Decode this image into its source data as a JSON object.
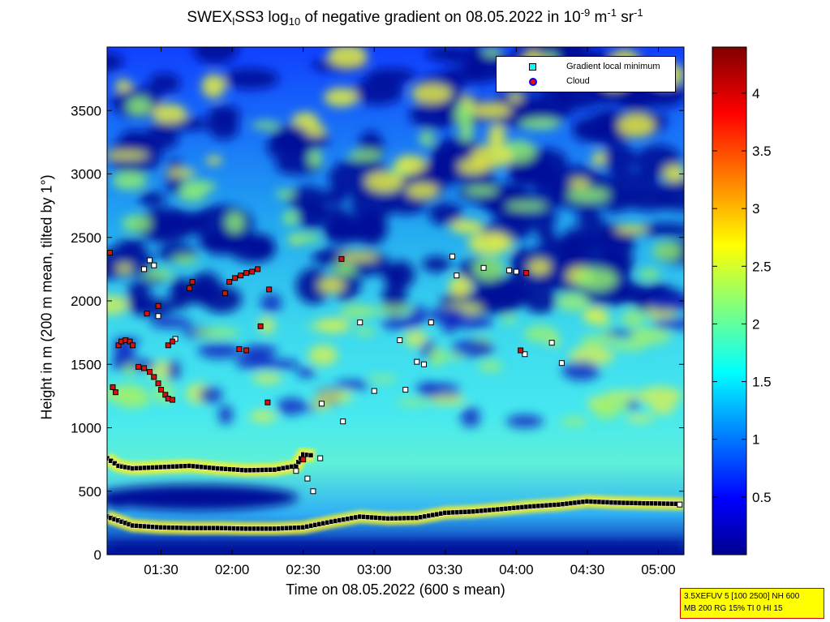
{
  "title": {
    "part1": "SWEX",
    "sub1": "l",
    "part2": "SS3 log",
    "sub2": "10",
    "part3": " of negative gradient on 08.05.2022 in 10",
    "sup1": "-9",
    "part4": " m",
    "sup2": "-1",
    "part5": " sr",
    "sup3": "-1"
  },
  "chart_data": {
    "type": "heatmap",
    "xlabel": "Time on 08.05.2022 (600 s mean)",
    "ylabel": "Height in m (200 m mean, tilted by 1°)",
    "x_ticks": [
      "01:30",
      "02:00",
      "02:30",
      "03:00",
      "03:30",
      "04:00",
      "04:30",
      "05:00"
    ],
    "x_tick_hours": [
      1.5,
      2.0,
      2.5,
      3.0,
      3.5,
      4.0,
      4.5,
      5.0
    ],
    "xlim_hours": [
      1.12,
      5.18
    ],
    "y_ticks": [
      0,
      500,
      1000,
      1500,
      2000,
      2500,
      3000,
      3500
    ],
    "ylim": [
      0,
      4000
    ],
    "colorbar": {
      "ticks": [
        "0.5",
        "1",
        "1.5",
        "2",
        "2.5",
        "3",
        "3.5",
        "4"
      ],
      "tick_values": [
        0.5,
        1,
        1.5,
        2,
        2.5,
        3,
        3.5,
        4
      ],
      "range": [
        0,
        4.4
      ],
      "colormap": "jet"
    },
    "legend": [
      {
        "label": "Gradient local minimum",
        "marker": "square",
        "color": "#00ffff"
      },
      {
        "label": "Cloud",
        "marker": "circle",
        "color": "#ff0000"
      }
    ],
    "layers": [
      {
        "name": "surface layer top",
        "hours": [
          1.12,
          1.3,
          1.5,
          1.7,
          1.9,
          2.1,
          2.3,
          2.5,
          2.7,
          2.9,
          3.1,
          3.3,
          3.5,
          3.7,
          3.9,
          4.1,
          4.3,
          4.5,
          4.7,
          4.9,
          5.18
        ],
        "heights": [
          300,
          230,
          215,
          210,
          210,
          205,
          205,
          215,
          260,
          300,
          285,
          290,
          330,
          340,
          360,
          380,
          395,
          420,
          410,
          405,
          400
        ]
      },
      {
        "name": "residual layer top",
        "hours": [
          1.12,
          1.2,
          1.3,
          1.5,
          1.7,
          1.9,
          2.1,
          2.3,
          2.45,
          2.5,
          2.58
        ],
        "heights": [
          760,
          700,
          680,
          690,
          700,
          680,
          665,
          670,
          700,
          790,
          780
        ]
      }
    ],
    "cloud_points": [
      {
        "t": 1.14,
        "h": 2380
      },
      {
        "t": 1.16,
        "h": 1320
      },
      {
        "t": 1.18,
        "h": 1280
      },
      {
        "t": 1.2,
        "h": 1650
      },
      {
        "t": 1.22,
        "h": 1680
      },
      {
        "t": 1.25,
        "h": 1690
      },
      {
        "t": 1.28,
        "h": 1680
      },
      {
        "t": 1.3,
        "h": 1650
      },
      {
        "t": 1.34,
        "h": 1480
      },
      {
        "t": 1.38,
        "h": 1470
      },
      {
        "t": 1.42,
        "h": 1440
      },
      {
        "t": 1.45,
        "h": 1400
      },
      {
        "t": 1.48,
        "h": 1350
      },
      {
        "t": 1.5,
        "h": 1300
      },
      {
        "t": 1.53,
        "h": 1260
      },
      {
        "t": 1.55,
        "h": 1230
      },
      {
        "t": 1.58,
        "h": 1220
      },
      {
        "t": 1.4,
        "h": 1900
      },
      {
        "t": 1.48,
        "h": 1960
      },
      {
        "t": 1.55,
        "h": 1650
      },
      {
        "t": 1.58,
        "h": 1680
      },
      {
        "t": 1.7,
        "h": 2100
      },
      {
        "t": 1.72,
        "h": 2150
      },
      {
        "t": 1.95,
        "h": 2060
      },
      {
        "t": 1.98,
        "h": 2150
      },
      {
        "t": 2.02,
        "h": 2180
      },
      {
        "t": 2.06,
        "h": 2200
      },
      {
        "t": 2.1,
        "h": 2220
      },
      {
        "t": 2.14,
        "h": 2230
      },
      {
        "t": 2.18,
        "h": 2250
      },
      {
        "t": 2.2,
        "h": 1800
      },
      {
        "t": 2.26,
        "h": 2090
      },
      {
        "t": 2.05,
        "h": 1620
      },
      {
        "t": 2.1,
        "h": 1610
      },
      {
        "t": 2.25,
        "h": 1200
      },
      {
        "t": 2.5,
        "h": 750
      },
      {
        "t": 2.77,
        "h": 2330
      },
      {
        "t": 4.03,
        "h": 1610
      },
      {
        "t": 4.07,
        "h": 2220
      }
    ],
    "minimum_points": [
      {
        "t": 1.42,
        "h": 2320
      },
      {
        "t": 1.45,
        "h": 2280
      },
      {
        "t": 1.38,
        "h": 2250
      },
      {
        "t": 1.48,
        "h": 1880
      },
      {
        "t": 1.6,
        "h": 1700
      },
      {
        "t": 2.45,
        "h": 660
      },
      {
        "t": 2.53,
        "h": 600
      },
      {
        "t": 2.57,
        "h": 500
      },
      {
        "t": 2.62,
        "h": 760
      },
      {
        "t": 2.78,
        "h": 1050
      },
      {
        "t": 2.9,
        "h": 1830
      },
      {
        "t": 3.18,
        "h": 1690
      },
      {
        "t": 3.22,
        "h": 1300
      },
      {
        "t": 3.3,
        "h": 1520
      },
      {
        "t": 3.35,
        "h": 1500
      },
      {
        "t": 3.4,
        "h": 1830
      },
      {
        "t": 3.55,
        "h": 2350
      },
      {
        "t": 3.58,
        "h": 2200
      },
      {
        "t": 3.77,
        "h": 2260
      },
      {
        "t": 3.95,
        "h": 2240
      },
      {
        "t": 4.0,
        "h": 2230
      },
      {
        "t": 4.06,
        "h": 1580
      },
      {
        "t": 4.25,
        "h": 1670
      },
      {
        "t": 4.32,
        "h": 1510
      },
      {
        "t": 5.15,
        "h": 395
      },
      {
        "t": 2.63,
        "h": 1190
      },
      {
        "t": 3.0,
        "h": 1290
      }
    ]
  },
  "infobox": {
    "line1": "3.5XEFUV 5 [100 2500] NH 600",
    "line2": "MB 200 RG 15% TI 0 HI 15"
  }
}
